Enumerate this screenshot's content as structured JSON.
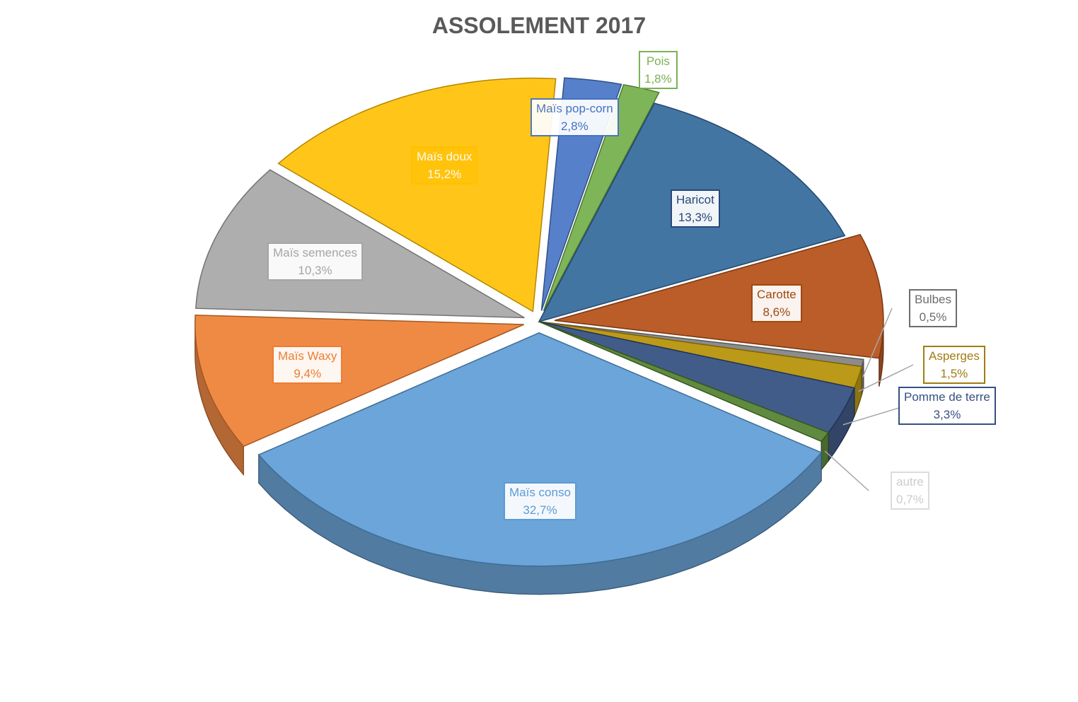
{
  "chart_data": {
    "type": "pie",
    "title": "ASSOLEMENT 2017",
    "slices": [
      {
        "label": "Maïs pop-corn",
        "value_label": "2,8%",
        "value": 2.8,
        "color": "#4472c4",
        "text_color": "#4472c4",
        "exploded": true
      },
      {
        "label": "Pois",
        "value_label": "1,8%",
        "value": 1.8,
        "color": "#70ad47",
        "text_color": "#70ad47",
        "exploded": true
      },
      {
        "label": "Haricot",
        "value_label": "13,3%",
        "value": 13.3,
        "color": "#2f6699",
        "text_color": "#264478",
        "exploded": false
      },
      {
        "label": "Carotte",
        "value_label": "8,6%",
        "value": 8.6,
        "color": "#b34b12",
        "text_color": "#9e480e",
        "exploded": true
      },
      {
        "label": "Bulbes",
        "value_label": "0,5%",
        "value": 0.5,
        "color": "#7f7f7f",
        "text_color": "#636363",
        "exploded": false
      },
      {
        "label": "Asperges",
        "value_label": "1,5%",
        "value": 1.5,
        "color": "#b58f00",
        "text_color": "#997300",
        "exploded": false
      },
      {
        "label": "Pomme de terre",
        "value_label": "3,3%",
        "value": 3.3,
        "color": "#2e4a7d",
        "text_color": "#264478",
        "exploded": false
      },
      {
        "label": "autre",
        "value_label": "0,7%",
        "value": 0.7,
        "color": "#4f7d2b",
        "text_color": "#c9c9c9",
        "exploded": false
      },
      {
        "label": "Maïs conso",
        "value_label": "32,7%",
        "value": 32.7,
        "color": "#5b9bd5",
        "text_color": "#5b9bd5",
        "exploded": true
      },
      {
        "label": "Maïs Waxy",
        "value_label": "9,4%",
        "value": 9.4,
        "color": "#ed7d31",
        "text_color": "#ed7d31",
        "exploded": true
      },
      {
        "label": "Maïs semences",
        "value_label": "10,3%",
        "value": 10.3,
        "color": "#a5a5a5",
        "text_color": "#a5a5a5",
        "exploded": true
      },
      {
        "label": "Maïs doux",
        "value_label": "15,2%",
        "value": 15.2,
        "color": "#ffc000",
        "text_color": "#ffffff",
        "exploded": true
      }
    ],
    "legend": "none"
  }
}
